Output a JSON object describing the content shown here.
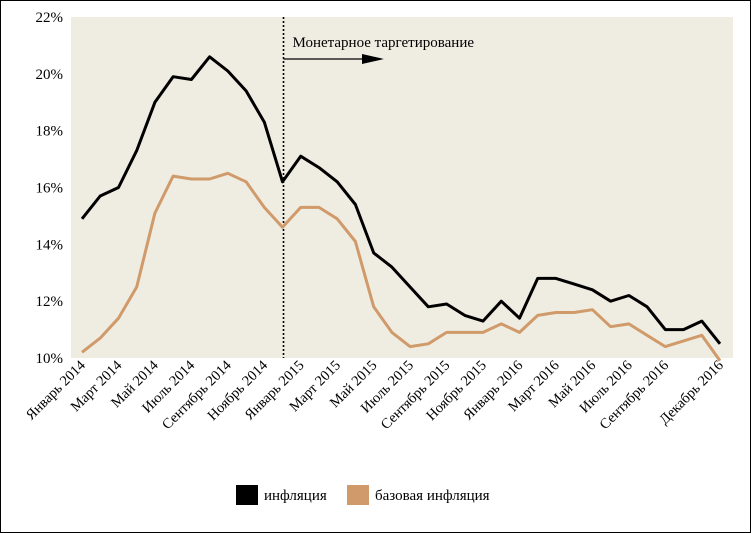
{
  "chart_data": {
    "type": "line",
    "title": "",
    "xlabel": "",
    "ylabel": "",
    "ylim": [
      10,
      22
    ],
    "yticks": [
      "10%",
      "12%",
      "14%",
      "16%",
      "18%",
      "20%",
      "22%"
    ],
    "ytick_values": [
      10,
      12,
      14,
      16,
      18,
      20,
      22
    ],
    "x": [
      "Январь 2014",
      "Февраль 2014",
      "Март 2014",
      "Апрель 2014",
      "Май 2014",
      "Июнь 2014",
      "Июль 2014",
      "Август 2014",
      "Сентябрь 2014",
      "Октябрь 2014",
      "Ноябрь 2014",
      "Декабрь 2014",
      "Январь 2015",
      "Февраль 2015",
      "Март 2015",
      "Апрель 2015",
      "Май 2015",
      "Июнь 2015",
      "Июль 2015",
      "Август 2015",
      "Сентябрь 2015",
      "Октябрь 2015",
      "Ноябрь 2015",
      "Декабрь 2015",
      "Январь 2016",
      "Февраль 2016",
      "Март 2016",
      "Апрель 2016",
      "Май 2016",
      "Июнь 2016",
      "Июль 2016",
      "Август 2016",
      "Сентябрь 2016",
      "Октябрь 2016",
      "Ноябрь 2016",
      "Декабрь 2016"
    ],
    "xtick_labels": [
      "Январь 2014",
      "Март 2014",
      "Май 2014",
      "Июль 2014",
      "Сентябрь 2014",
      "Ноябрь 2014",
      "Январь 2015",
      "Март 2015",
      "Май 2015",
      "Июль 2015",
      "Сентябрь 2015",
      "Ноябрь 2015",
      "Январь 2016",
      "Март 2016",
      "Май 2016",
      "Июль 2016",
      "Сентябрь 2016",
      "Декабрь 2016"
    ],
    "xtick_index": [
      0,
      2,
      4,
      6,
      8,
      10,
      12,
      14,
      16,
      18,
      20,
      22,
      24,
      26,
      28,
      30,
      32,
      35
    ],
    "series": [
      {
        "name": "инфляция",
        "color": "#000000",
        "values": [
          14.9,
          15.7,
          16.0,
          17.3,
          19.0,
          19.9,
          19.8,
          20.6,
          20.1,
          19.4,
          18.3,
          16.2,
          17.1,
          16.7,
          16.2,
          15.4,
          13.7,
          13.2,
          12.5,
          11.8,
          11.9,
          11.5,
          11.3,
          12.0,
          11.4,
          12.8,
          12.8,
          12.6,
          12.4,
          12.0,
          12.2,
          11.8,
          11.0,
          11.0,
          11.3,
          10.5
        ]
      },
      {
        "name": "базовая инфляция",
        "color": "#d09a6a",
        "values": [
          10.2,
          10.7,
          11.4,
          12.5,
          15.1,
          16.4,
          16.3,
          16.3,
          16.5,
          16.2,
          15.3,
          14.6,
          15.3,
          15.3,
          14.9,
          14.1,
          11.8,
          10.9,
          10.4,
          10.5,
          10.9,
          10.9,
          10.9,
          11.2,
          10.9,
          11.5,
          11.6,
          11.6,
          11.7,
          11.1,
          11.2,
          10.8,
          10.4,
          10.6,
          10.8,
          9.9
        ]
      }
    ],
    "background": "#efede2",
    "grid": false,
    "legend_position": "bottom-center",
    "annotation": {
      "text": "Монетарное таргетирование",
      "at_index": 11
    }
  }
}
